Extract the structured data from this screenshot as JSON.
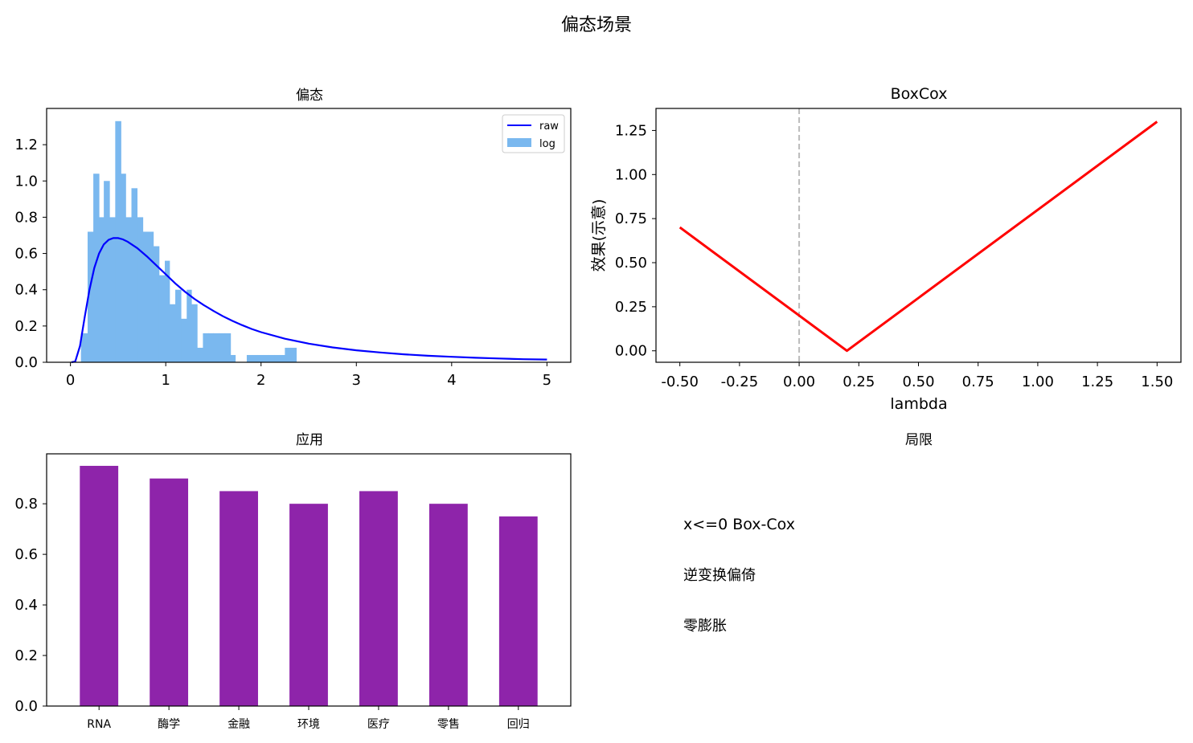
{
  "figure": {
    "suptitle": "偏态场景"
  },
  "chart_data": [
    {
      "id": "hist",
      "type": "line",
      "title": "偏态",
      "xlim": [
        -0.25,
        5.25
      ],
      "ylim": [
        0,
        1.4
      ],
      "xticks": [
        0,
        1,
        2,
        3,
        4,
        5
      ],
      "yticks": [
        0.0,
        0.2,
        0.4,
        0.6,
        0.8,
        1.0,
        1.2
      ],
      "ytick_labels": [
        "0.0",
        "0.2",
        "0.4",
        "0.6",
        "0.8",
        "1.0",
        "1.2"
      ],
      "legend": {
        "placement": "upper right",
        "entries": [
          "raw",
          "log"
        ]
      },
      "series": [
        {
          "name": "raw",
          "kind": "line",
          "color": "#0000ff",
          "x": [
            0.01,
            0.05,
            0.1,
            0.15,
            0.2,
            0.25,
            0.3,
            0.35,
            0.4,
            0.45,
            0.5,
            0.55,
            0.6,
            0.7,
            0.8,
            0.9,
            1.0,
            1.1,
            1.2,
            1.3,
            1.4,
            1.5,
            1.6,
            1.7,
            1.8,
            1.9,
            2.0,
            2.25,
            2.5,
            2.75,
            3.0,
            3.25,
            3.5,
            3.75,
            4.0,
            4.25,
            4.5,
            4.75,
            5.0
          ],
          "y": [
            0.0,
            0.004,
            0.09,
            0.25,
            0.4,
            0.52,
            0.6,
            0.65,
            0.675,
            0.685,
            0.685,
            0.678,
            0.665,
            0.63,
            0.585,
            0.535,
            0.485,
            0.435,
            0.39,
            0.35,
            0.315,
            0.283,
            0.254,
            0.228,
            0.205,
            0.184,
            0.166,
            0.13,
            0.103,
            0.082,
            0.066,
            0.054,
            0.044,
            0.036,
            0.03,
            0.025,
            0.021,
            0.017,
            0.015
          ]
        },
        {
          "name": "log",
          "kind": "histogram",
          "color": "#7ab8ef",
          "bin_edges": [
            0.11,
            0.18,
            0.24,
            0.3,
            0.35,
            0.41,
            0.47,
            0.53,
            0.58,
            0.64,
            0.7,
            0.76,
            0.81,
            0.87,
            0.93,
            0.99,
            1.04,
            1.1,
            1.16,
            1.22,
            1.27,
            1.33,
            1.39,
            1.45,
            1.5,
            1.56,
            1.62,
            1.68,
            1.73,
            1.79,
            1.85,
            1.91,
            1.96,
            2.02,
            2.08,
            2.14,
            2.19,
            2.25,
            2.31,
            2.37
          ],
          "values": [
            0.16,
            0.72,
            1.04,
            0.8,
            1.0,
            0.8,
            1.33,
            1.04,
            0.8,
            0.96,
            0.8,
            0.72,
            0.72,
            0.64,
            0.48,
            0.56,
            0.32,
            0.4,
            0.24,
            0.4,
            0.32,
            0.08,
            0.16,
            0.16,
            0.16,
            0.16,
            0.16,
            0.04,
            0.0,
            0.0,
            0.04,
            0.04,
            0.04,
            0.04,
            0.04,
            0.04,
            0.04,
            0.08,
            0.08
          ]
        }
      ]
    },
    {
      "id": "boxcox",
      "type": "line",
      "title": "BoxCox",
      "xlabel": "lambda",
      "ylabel": "效果(示意)",
      "xlim": [
        -0.6,
        1.6
      ],
      "ylim": [
        -0.065,
        1.375
      ],
      "xticks": [
        -0.5,
        -0.25,
        0.0,
        0.25,
        0.5,
        0.75,
        1.0,
        1.25,
        1.5
      ],
      "xtick_labels": [
        "-0.50",
        "-0.25",
        "0.00",
        "0.25",
        "0.50",
        "0.75",
        "1.00",
        "1.25",
        "1.50"
      ],
      "yticks": [
        0.0,
        0.25,
        0.5,
        0.75,
        1.0,
        1.25
      ],
      "ytick_labels": [
        "0.00",
        "0.25",
        "0.50",
        "0.75",
        "1.00",
        "1.25"
      ],
      "vline": {
        "x": 0.0,
        "color": "#bbbbbb",
        "style": "dashed"
      },
      "series": [
        {
          "kind": "line",
          "color": "#ff0000",
          "x": [
            -0.5,
            0.2,
            0.235,
            1.5
          ],
          "y": [
            0.7,
            0.0,
            0.035,
            1.3
          ]
        }
      ]
    },
    {
      "id": "apps",
      "type": "bar",
      "title": "应用",
      "categories": [
        "RNA",
        "酶学",
        "金融",
        "环境",
        "医疗",
        "零售",
        "回归"
      ],
      "values": [
        0.95,
        0.9,
        0.85,
        0.8,
        0.85,
        0.8,
        0.75
      ],
      "color": "#8e24aa",
      "ylim": [
        0,
        0.9975
      ],
      "yticks": [
        0.0,
        0.2,
        0.4,
        0.6,
        0.8
      ],
      "ytick_labels": [
        "0.0",
        "0.2",
        "0.4",
        "0.6",
        "0.8"
      ]
    }
  ],
  "limits_panel": {
    "title": "局限",
    "items": [
      "x<=0 Box-Cox",
      "逆变换偏倚",
      "零膨胀"
    ]
  }
}
